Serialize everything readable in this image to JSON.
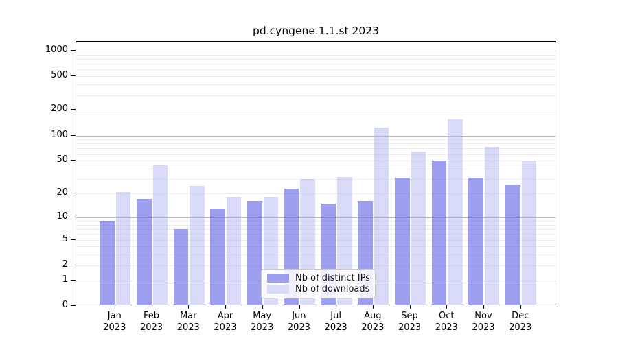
{
  "title": "pd.cyngene.1.1.st 2023",
  "chart_data": {
    "type": "bar",
    "title": "pd.cyngene.1.1.st 2023",
    "scale": "log10(1+x)",
    "grid": true,
    "legend_position": "bottom-center",
    "categories": [
      "Jan 2023",
      "Feb 2023",
      "Mar 2023",
      "Apr 2023",
      "May 2023",
      "Jun 2023",
      "Jul 2023",
      "Aug 2023",
      "Sep 2023",
      "Oct 2023",
      "Nov 2023",
      "Dec 2023"
    ],
    "series": [
      {
        "name": "Nb of distinct IPs",
        "color": "#9f9fef",
        "values": [
          9,
          17,
          7,
          13,
          16,
          23,
          15,
          16,
          31,
          50,
          31,
          26
        ]
      },
      {
        "name": "Nb of downloads",
        "color": "#d9d9f8",
        "values": [
          21,
          44,
          25,
          18,
          18,
          30,
          32,
          125,
          64,
          155,
          73,
          50
        ]
      }
    ],
    "y_ticks": [
      0,
      1,
      2,
      5,
      10,
      20,
      50,
      100,
      200,
      500,
      1000
    ],
    "ylim": [
      0,
      1274
    ],
    "xlabel": "",
    "ylabel": ""
  },
  "colors": {
    "major_gridline": "#b7b7b7",
    "minor_gridline": "#ededed",
    "axis": "#000000",
    "legend_border": "#cbcbcb"
  }
}
